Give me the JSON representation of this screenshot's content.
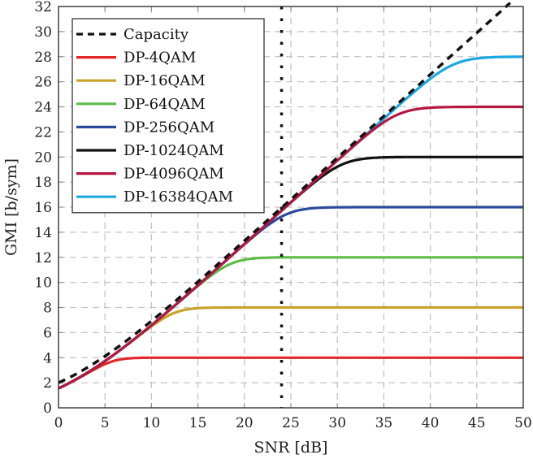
{
  "chart_data": {
    "type": "line",
    "title": "",
    "xlabel": "SNR [dB]",
    "ylabel": "GMI [b/sym]",
    "xlim": [
      0,
      50
    ],
    "ylim": [
      0,
      32
    ],
    "xticks": [
      0,
      5,
      10,
      15,
      20,
      25,
      30,
      35,
      40,
      45,
      50
    ],
    "yticks": [
      0,
      2,
      4,
      6,
      8,
      10,
      12,
      14,
      16,
      18,
      20,
      22,
      24,
      26,
      28,
      30,
      32
    ],
    "grid": true,
    "legend_position": "top-left",
    "vertical_marker": {
      "x": 24,
      "style": "dotted",
      "color": "#111111"
    },
    "series": [
      {
        "name": "Capacity",
        "color": "#111111",
        "style": "dashed",
        "kind": "capacity",
        "saturation": null
      },
      {
        "name": "DP-4QAM",
        "color": "#e3262b",
        "style": "solid",
        "kind": "qam",
        "saturation": 4
      },
      {
        "name": "DP-16QAM",
        "color": "#c9a227",
        "style": "solid",
        "kind": "qam",
        "saturation": 8
      },
      {
        "name": "DP-64QAM",
        "color": "#5dbb46",
        "style": "solid",
        "kind": "qam",
        "saturation": 12
      },
      {
        "name": "DP-256QAM",
        "color": "#2b4a9b",
        "style": "solid",
        "kind": "qam",
        "saturation": 16
      },
      {
        "name": "DP-1024QAM",
        "color": "#111111",
        "style": "solid",
        "kind": "qam",
        "saturation": 20
      },
      {
        "name": "DP-4096QAM",
        "color": "#b5173f",
        "style": "solid",
        "kind": "qam",
        "saturation": 24
      },
      {
        "name": "DP-16384QAM",
        "color": "#1ba8e0",
        "style": "solid",
        "kind": "qam",
        "saturation": 28
      }
    ],
    "sample_points": {
      "x": [
        0,
        5,
        10,
        15,
        20,
        25,
        30,
        35,
        40,
        45,
        50
      ],
      "Capacity": [
        2.0,
        4.2,
        6.9,
        10.1,
        13.3,
        16.6,
        19.9,
        23.3,
        26.6,
        29.9,
        33.2
      ],
      "DP-4QAM": [
        1.7,
        3.4,
        3.97,
        4.0,
        4.0,
        4.0,
        4.0,
        4.0,
        4.0,
        4.0,
        4.0
      ],
      "DP-16QAM": [
        1.7,
        3.7,
        6.3,
        7.9,
        8.0,
        8.0,
        8.0,
        8.0,
        8.0,
        8.0,
        8.0
      ],
      "DP-64QAM": [
        1.8,
        3.8,
        6.4,
        9.5,
        11.8,
        12.0,
        12.0,
        12.0,
        12.0,
        12.0,
        12.0
      ],
      "DP-256QAM": [
        1.8,
        3.8,
        6.4,
        9.5,
        12.8,
        15.5,
        16.0,
        16.0,
        16.0,
        16.0,
        16.0
      ],
      "DP-1024QAM": [
        1.8,
        3.8,
        6.4,
        9.5,
        12.8,
        16.0,
        19.2,
        20.0,
        20.0,
        20.0,
        20.0
      ],
      "DP-4096QAM": [
        1.7,
        3.7,
        6.3,
        9.4,
        12.7,
        15.9,
        19.2,
        22.4,
        24.0,
        24.0,
        24.0
      ],
      "DP-16384QAM": [
        2.0,
        4.0,
        6.6,
        9.7,
        12.9,
        16.1,
        19.3,
        22.5,
        25.6,
        27.9,
        28.0
      ]
    }
  }
}
